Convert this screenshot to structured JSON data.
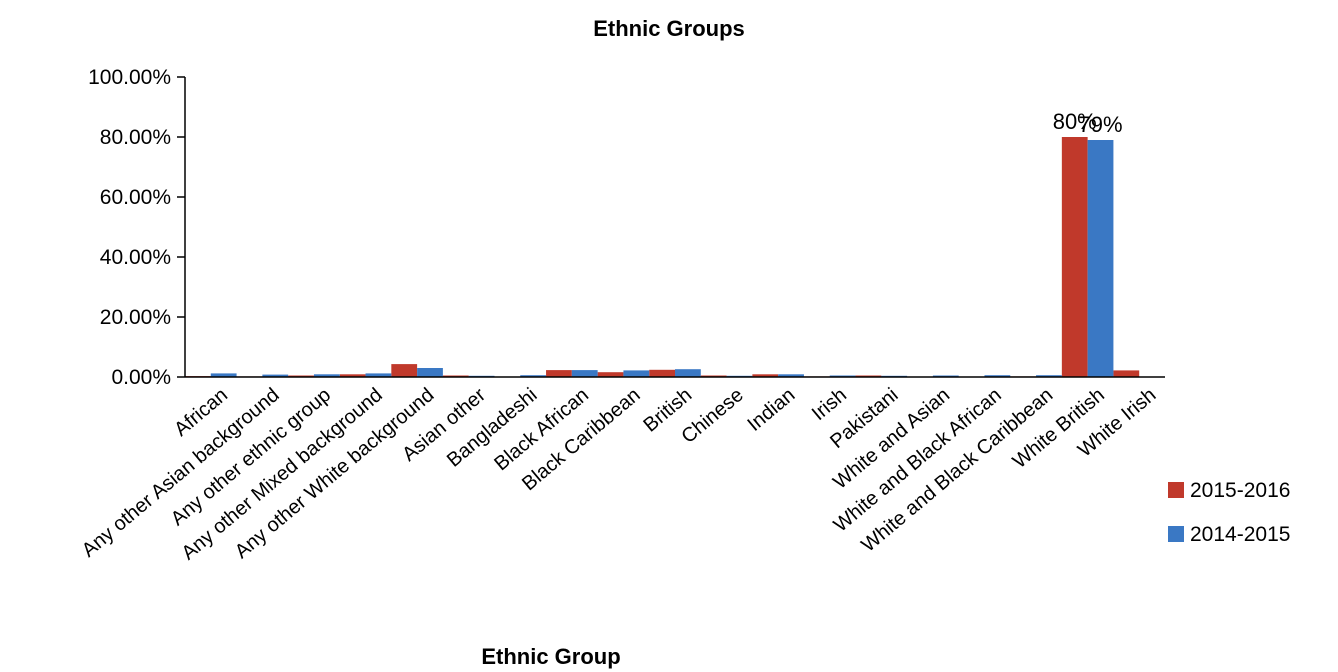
{
  "chart_data": {
    "type": "bar",
    "title": "Ethnic Groups",
    "xlabel": "Ethnic Group",
    "ylabel": "",
    "ylim": [
      0,
      100
    ],
    "yticks": [
      "0.00%",
      "20.00%",
      "40.00%",
      "60.00%",
      "80.00%",
      "100.00%"
    ],
    "grid": false,
    "legend_position": "right",
    "categories": [
      "African",
      "Any other Asian background",
      "Any other ethnic group",
      "Any other Mixed background",
      "Any other White background",
      "Asian other",
      "Bangladeshi",
      "Black African",
      "Black Caribbean",
      "British",
      "Chinese",
      "Indian",
      "Irish",
      "Pakistani",
      "White and Asian",
      "White and Black African",
      "White and Black Caribbean",
      "White British",
      "White Irish"
    ],
    "series": [
      {
        "name": "2015-2016",
        "color": "#c0392b",
        "values": [
          0.3,
          0.2,
          0.5,
          0.9,
          4.3,
          0.5,
          0.1,
          2.3,
          1.6,
          2.4,
          0.5,
          0.9,
          0.2,
          0.5,
          0.1,
          0.1,
          0.2,
          80.0,
          2.2
        ]
      },
      {
        "name": "2014-2015",
        "color": "#3a78c4",
        "values": [
          1.2,
          0.8,
          0.9,
          1.2,
          3.0,
          0.4,
          0.6,
          2.3,
          2.2,
          2.6,
          0.4,
          0.9,
          0.5,
          0.4,
          0.5,
          0.6,
          0.6,
          79.0,
          0.0
        ]
      }
    ],
    "data_labels": [
      {
        "series": 0,
        "index": 17,
        "text": "80%"
      },
      {
        "series": 1,
        "index": 17,
        "text": "79%"
      }
    ]
  }
}
